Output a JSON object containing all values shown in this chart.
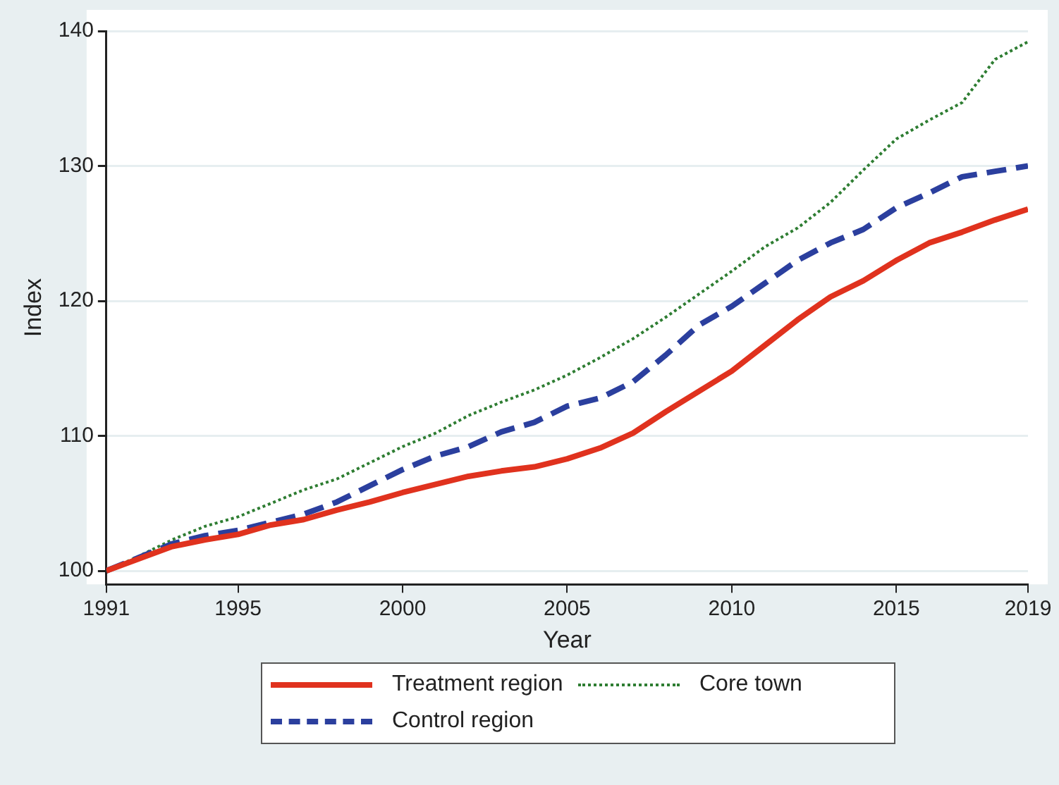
{
  "chart_data": {
    "type": "line",
    "xlabel": "Year",
    "ylabel": "Index",
    "x": [
      1991,
      1992,
      1993,
      1994,
      1995,
      1996,
      1997,
      1998,
      1999,
      2000,
      2001,
      2002,
      2003,
      2004,
      2005,
      2006,
      2007,
      2008,
      2009,
      2010,
      2011,
      2012,
      2013,
      2014,
      2015,
      2016,
      2017,
      2018,
      2019
    ],
    "xlim": [
      1991,
      2019
    ],
    "xticks": [
      1991,
      1995,
      2000,
      2005,
      2010,
      2015,
      2019
    ],
    "ylim": [
      99,
      140
    ],
    "yticks": [
      100,
      110,
      120,
      130,
      140
    ],
    "grid": "y",
    "legend": "bottom",
    "marker": "none",
    "series": [
      {
        "name": "Treatment region",
        "color": "#e0321e",
        "line_style": "solid",
        "values": [
          100,
          100.9,
          101.8,
          102.3,
          102.7,
          103.4,
          103.8,
          104.5,
          105.1,
          105.8,
          106.4,
          107.0,
          107.4,
          107.7,
          108.3,
          109.1,
          110.2,
          111.8,
          113.3,
          114.8,
          116.7,
          118.6,
          120.3,
          121.5,
          123.0,
          124.3,
          125.1,
          126.0,
          126.8
        ]
      },
      {
        "name": "Control region",
        "color": "#2b3f9e",
        "line_style": "dashed",
        "values": [
          100,
          101.0,
          102.0,
          102.6,
          103.0,
          103.6,
          104.2,
          105.1,
          106.3,
          107.5,
          108.5,
          109.2,
          110.3,
          111.0,
          112.2,
          112.8,
          114.0,
          116.0,
          118.2,
          119.6,
          121.3,
          123.0,
          124.3,
          125.3,
          126.9,
          128.0,
          129.2,
          129.6,
          130.0
        ]
      },
      {
        "name": "Core town",
        "color": "#2e7d32",
        "line_style": "dotted",
        "values": [
          100,
          101.1,
          102.3,
          103.3,
          104.0,
          105.0,
          106.0,
          106.8,
          108.0,
          109.2,
          110.2,
          111.5,
          112.5,
          113.4,
          114.5,
          115.8,
          117.2,
          118.8,
          120.5,
          122.2,
          124.0,
          125.4,
          127.3,
          129.7,
          132.0,
          133.4,
          134.7,
          137.9,
          139.2
        ]
      }
    ]
  }
}
